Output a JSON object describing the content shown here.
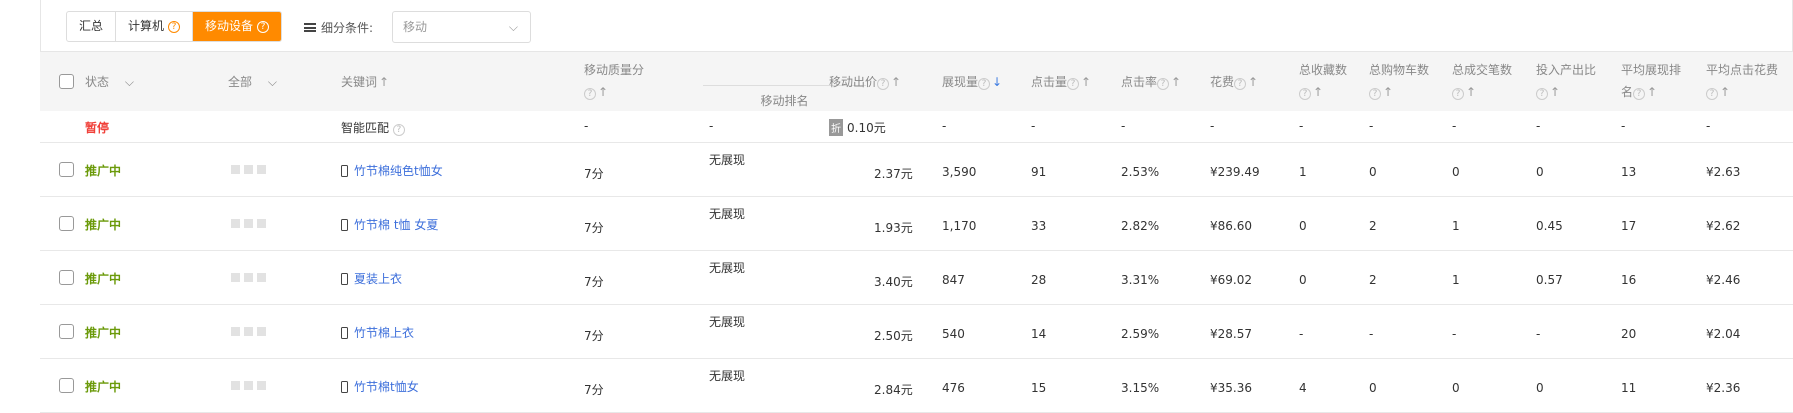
{
  "tabs": [
    {
      "label": "汇总",
      "help": false,
      "active": false
    },
    {
      "label": "计算机",
      "help": true,
      "active": false
    },
    {
      "label": "移动设备",
      "help": true,
      "active": true
    }
  ],
  "filter": {
    "label": "细分条件:",
    "icon": "list-icon",
    "value": "移动"
  },
  "header": {
    "status": "状态",
    "all": "全部",
    "keyword": "关键词",
    "quality": "移动质量分",
    "rank": "移动排名",
    "bid": "移动出价",
    "impressions": "展现量",
    "clicks": "点击量",
    "ctr": "点击率",
    "cost": "花费",
    "favorites": "总收藏数",
    "cart": "总购物车数",
    "orders": "总成交笔数",
    "roi": "投入产出比",
    "avg_rank": "平均展现排名",
    "avg_cpc": "平均点击花费",
    "sort_active": "impressions-desc"
  },
  "smart_row": {
    "status": "暂停",
    "keyword": "智能匹配",
    "quality": "-",
    "rank": "-",
    "discount_badge": "折",
    "bid": "0.10元",
    "impressions": "-",
    "clicks": "-",
    "ctr": "-",
    "cost": "-",
    "favorites": "-",
    "cart": "-",
    "orders": "-",
    "roi": "-",
    "avg_rank": "-",
    "avg_cpc": "-"
  },
  "rows": [
    {
      "status": "推广中",
      "keyword": "竹节棉纯色t恤女",
      "quality": "7分",
      "rank": "无展现",
      "bid": "2.37元",
      "impressions": "3,590",
      "clicks": "91",
      "ctr": "2.53%",
      "cost": "¥239.49",
      "favorites": "1",
      "cart": "0",
      "orders": "0",
      "roi": "0",
      "avg_rank": "13",
      "avg_cpc": "¥2.63"
    },
    {
      "status": "推广中",
      "keyword": "竹节棉 t恤 女夏",
      "quality": "7分",
      "rank": "无展现",
      "bid": "1.93元",
      "impressions": "1,170",
      "clicks": "33",
      "ctr": "2.82%",
      "cost": "¥86.60",
      "favorites": "0",
      "cart": "2",
      "orders": "1",
      "roi": "0.45",
      "avg_rank": "17",
      "avg_cpc": "¥2.62"
    },
    {
      "status": "推广中",
      "keyword": "夏装上衣",
      "quality": "7分",
      "rank": "无展现",
      "bid": "3.40元",
      "impressions": "847",
      "clicks": "28",
      "ctr": "3.31%",
      "cost": "¥69.02",
      "favorites": "0",
      "cart": "2",
      "orders": "1",
      "roi": "0.57",
      "avg_rank": "16",
      "avg_cpc": "¥2.46"
    },
    {
      "status": "推广中",
      "keyword": "竹节棉上衣",
      "quality": "7分",
      "rank": "无展现",
      "bid": "2.50元",
      "impressions": "540",
      "clicks": "14",
      "ctr": "2.59%",
      "cost": "¥28.57",
      "favorites": "-",
      "cart": "-",
      "orders": "-",
      "roi": "-",
      "avg_rank": "20",
      "avg_cpc": "¥2.04"
    },
    {
      "status": "推广中",
      "keyword": "竹节棉t恤女",
      "quality": "7分",
      "rank": "无展现",
      "bid": "2.84元",
      "impressions": "476",
      "clicks": "15",
      "ctr": "3.15%",
      "cost": "¥35.36",
      "favorites": "4",
      "cart": "0",
      "orders": "0",
      "roi": "0",
      "avg_rank": "11",
      "avg_cpc": "¥2.36"
    }
  ],
  "colors": {
    "accent": "#ff8a00",
    "paused": "#f0413a",
    "active": "#6b9a0a",
    "link": "#3d6fdb"
  }
}
